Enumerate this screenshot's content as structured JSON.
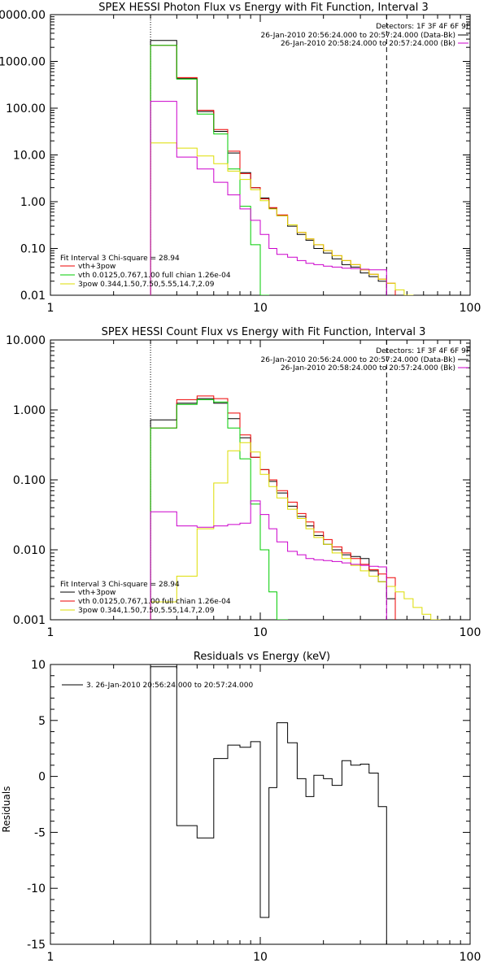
{
  "colors": {
    "data_minus_bk": "#000000",
    "bk": "#cc00cc",
    "fit_total": "#ee0000",
    "vth": "#00cc00",
    "pow": "#dddd00",
    "fit_total_label_count": "#000000",
    "vth_label_count": "#ee0000"
  },
  "chart_data": [
    {
      "type": "line",
      "title": "SPEX HESSI Photon Flux vs Energy with Fit Function, Interval 3",
      "xscale": "log",
      "yscale": "log",
      "xlim": [
        1,
        100
      ],
      "ylim": [
        0.01,
        10000
      ],
      "xticks": [
        1,
        10,
        100
      ],
      "xtick_labels": [
        "1",
        "10",
        "100"
      ],
      "yticks": [
        0.01,
        0.1,
        1,
        10,
        100,
        1000,
        10000
      ],
      "ytick_labels": [
        "0.01",
        "0.10",
        "1.00",
        "10.00",
        "100.00",
        "1000.00",
        "10000.00"
      ],
      "detectors_label": "Detectors: 1F 3F 4F 6F 9F",
      "legend_top": [
        {
          "label": "26-Jan-2010 20:56:24.000 to 20:57:24.000 (Data-Bk)",
          "color_key": "data_minus_bk"
        },
        {
          "label": "26-Jan-2010 20:58:24.000 to 20:57:24.000 (Bk)",
          "color_key": "bk"
        }
      ],
      "fit_header": "Fit Interval 3    Chi-square = 28.94",
      "legend_bottom": [
        {
          "label": "vth+3pow",
          "color_key": "fit_total"
        },
        {
          "label": "vth 0.0125,0.767,1.00  full chian 1.26e-04",
          "color_key": "vth"
        },
        {
          "label": "3pow 0.344,1.50,7.50,5.55,14.7,2.09",
          "color_key": "pow"
        }
      ],
      "vline_dotted": 3,
      "vline_dashed": 40,
      "edges": [
        3,
        4,
        5,
        6,
        7,
        8,
        9,
        10,
        11,
        12,
        13.5,
        15,
        16.5,
        18,
        20,
        22,
        24.5,
        27,
        30,
        33,
        36.5,
        40,
        44,
        48.5,
        53.5
      ],
      "series": [
        {
          "name": "Data-Bk",
          "color_key": "data_minus_bk",
          "values": [
            2800,
            430,
            85,
            32,
            11,
            4.2,
            2.0,
            1.2,
            0.72,
            0.5,
            0.3,
            0.2,
            0.15,
            0.1,
            0.08,
            0.06,
            0.045,
            0.04,
            0.03,
            0.025,
            0.02,
            0.01
          ]
        },
        {
          "name": "vth+3pow",
          "color_key": "fit_total",
          "values": [
            2200,
            450,
            90,
            35,
            12,
            4.0,
            2.0,
            1.15,
            0.75,
            0.52,
            0.32,
            0.22,
            0.16,
            0.12,
            0.09,
            0.07,
            0.055,
            0.045,
            0.035,
            0.028,
            0.022,
            0.018
          ]
        },
        {
          "name": "vth",
          "color_key": "vth",
          "values": [
            2200,
            420,
            75,
            28,
            5.0,
            0.8,
            0.12,
            0.008
          ]
        },
        {
          "name": "3pow",
          "color_key": "pow",
          "values": [
            18,
            14,
            9.5,
            6.5,
            4.5,
            3.0,
            1.8,
            1.05,
            0.7,
            0.5,
            0.32,
            0.22,
            0.16,
            0.12,
            0.09,
            0.07,
            0.055,
            0.045,
            0.035,
            0.028,
            0.022,
            0.018,
            0.013,
            0.01
          ]
        },
        {
          "name": "Bk",
          "color_key": "bk",
          "values": [
            140,
            9,
            5,
            2.6,
            1.4,
            0.7,
            0.4,
            0.2,
            0.1,
            0.075,
            0.065,
            0.055,
            0.048,
            0.045,
            0.042,
            0.04,
            0.038,
            0.037,
            0.036,
            0.035,
            0.035
          ]
        }
      ]
    },
    {
      "type": "line",
      "title": "SPEX HESSI Count Flux vs Energy with Fit Function, Interval 3",
      "xscale": "log",
      "yscale": "log",
      "xlim": [
        1,
        100
      ],
      "ylim": [
        0.001,
        10
      ],
      "xticks": [
        1,
        10,
        100
      ],
      "xtick_labels": [
        "1",
        "10",
        "100"
      ],
      "yticks": [
        0.001,
        0.01,
        0.1,
        1,
        10
      ],
      "ytick_labels": [
        "0.001",
        "0.010",
        "0.100",
        "1.000",
        "10.000"
      ],
      "detectors_label": "Detectors: 1F 3F 4F 6F 9F",
      "legend_top": [
        {
          "label": "26-Jan-2010 20:56:24.000 to 20:57:24.000 (Data-Bk)",
          "color_key": "data_minus_bk"
        },
        {
          "label": "26-Jan-2010 20:58:24.000 to 20:57:24.000 (Bk)",
          "color_key": "bk"
        }
      ],
      "fit_header": "Fit Interval 3    Chi-square = 28.94",
      "legend_bottom": [
        {
          "label": "vth+3pow",
          "color_key": "fit_total_label_count"
        },
        {
          "label": "vth 0.0125,0.767,1.00  full chian 1.26e-04",
          "color_key": "vth_label_count"
        },
        {
          "label": "3pow 0.344,1.50,7.50,5.55,14.7,2.09",
          "color_key": "pow"
        }
      ],
      "vline_dotted": 3,
      "vline_dashed": 40,
      "edges": [
        3,
        4,
        5,
        6,
        7,
        8,
        9,
        10,
        11,
        12,
        13.5,
        15,
        16.5,
        18,
        20,
        22,
        24.5,
        27,
        30,
        33,
        36.5,
        40,
        44,
        48.5,
        53.5,
        59,
        65,
        72
      ],
      "series": [
        {
          "name": "Data-Bk",
          "color_key": "data_minus_bk",
          "values": [
            0.72,
            1.25,
            1.45,
            1.25,
            0.75,
            0.4,
            0.21,
            0.14,
            0.095,
            0.065,
            0.042,
            0.03,
            0.022,
            0.016,
            0.012,
            0.01,
            0.0085,
            0.008,
            0.0075,
            0.005,
            0.0035,
            0.002
          ]
        },
        {
          "name": "vth+3pow",
          "color_key": "fit_total",
          "values": [
            0.55,
            1.4,
            1.58,
            1.45,
            0.9,
            0.44,
            0.21,
            0.14,
            0.1,
            0.07,
            0.048,
            0.033,
            0.025,
            0.018,
            0.014,
            0.011,
            0.009,
            0.0075,
            0.0062,
            0.0052,
            0.0045,
            0.004
          ]
        },
        {
          "name": "vth",
          "color_key": "vth",
          "values": [
            0.55,
            1.2,
            1.4,
            1.3,
            0.55,
            0.2,
            0.045,
            0.01,
            0.0025,
            0.0008
          ]
        },
        {
          "name": "3pow",
          "color_key": "pow",
          "values": [
            0.0018,
            0.0042,
            0.02,
            0.09,
            0.26,
            0.34,
            0.25,
            0.12,
            0.08,
            0.055,
            0.038,
            0.028,
            0.02,
            0.015,
            0.012,
            0.009,
            0.0075,
            0.006,
            0.005,
            0.0042,
            0.0035,
            0.003,
            0.0025,
            0.002,
            0.0015,
            0.0012,
            0.001
          ]
        },
        {
          "name": "Bk",
          "color_key": "bk",
          "values": [
            0.035,
            0.022,
            0.021,
            0.022,
            0.023,
            0.024,
            0.05,
            0.032,
            0.02,
            0.013,
            0.0095,
            0.0085,
            0.0075,
            0.0072,
            0.007,
            0.0068,
            0.0065,
            0.0062,
            0.006,
            0.0058,
            0.0057
          ]
        }
      ]
    },
    {
      "type": "line",
      "title": "Residuals vs Energy (keV)",
      "xscale": "log",
      "yscale": "linear",
      "xlim": [
        1,
        100
      ],
      "ylim": [
        -15,
        10
      ],
      "xticks": [
        1,
        10,
        100
      ],
      "xtick_labels": [
        "1",
        "10",
        "100"
      ],
      "yticks": [
        -15,
        -10,
        -5,
        0,
        5,
        10
      ],
      "ytick_labels": [
        "-15",
        "-10",
        "-5",
        "0",
        "5",
        "10"
      ],
      "ylabel": "Residuals",
      "legend": [
        {
          "label": "3. 26-Jan-2010 20:56:24.000 to 20:57:24.000",
          "color_key": "data_minus_bk"
        }
      ],
      "edges": [
        3,
        4,
        5,
        6,
        7,
        8,
        9,
        10,
        11,
        12,
        13.5,
        15,
        16.5,
        18,
        20,
        22,
        24.5,
        27,
        30,
        33,
        36.5,
        40
      ],
      "series": [
        {
          "name": "3. 26-Jan-2010 20:56:24.000 to 20:57:24.000",
          "color_key": "data_minus_bk",
          "values": [
            9.8,
            -4.4,
            -5.5,
            1.6,
            2.8,
            2.6,
            3.1,
            -12.6,
            -1.0,
            4.8,
            3.0,
            -0.2,
            -1.8,
            0.1,
            -0.2,
            -0.8,
            1.4,
            1.0,
            1.1,
            0.3,
            -2.7
          ]
        }
      ]
    }
  ]
}
